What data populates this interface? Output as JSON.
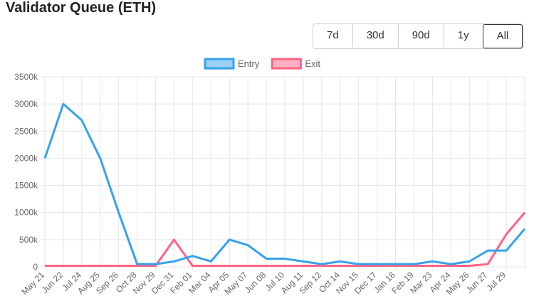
{
  "range_buttons": {
    "options": [
      "7d",
      "30d",
      "90d",
      "1y",
      "All"
    ],
    "selected": "All"
  },
  "chart_data": {
    "type": "line",
    "title": "Validator Queue (ETH)",
    "categories": [
      "May 21",
      "Jun 22",
      "Jul 24",
      "Aug 25",
      "Sep 26",
      "Oct 28",
      "Nov 29",
      "Dec 31",
      "Feb 01",
      "Mar 04",
      "Apr 05",
      "May 07",
      "Jun 08",
      "Jul 10",
      "Aug 11",
      "Sep 12",
      "Oct 14",
      "Nov 15",
      "Dec 17",
      "Jan 18",
      "Feb 19",
      "Mar 23",
      "Apr 24",
      "May 26",
      "Jun 27",
      "Jul 29",
      null
    ],
    "series": [
      {
        "name": "Entry",
        "color": "#36a2eb",
        "fill": "#9ad0f5",
        "values": [
          2000000,
          3000000,
          2700000,
          2000000,
          1000000,
          50000,
          50000,
          100000,
          200000,
          100000,
          500000,
          400000,
          150000,
          150000,
          100000,
          50000,
          100000,
          50000,
          50000,
          50000,
          50000,
          100000,
          50000,
          100000,
          300000,
          300000,
          700000
        ]
      },
      {
        "name": "Exit",
        "color": "#ff6384",
        "fill": "#ffb1c1",
        "values": [
          20000,
          20000,
          20000,
          20000,
          20000,
          20000,
          20000,
          500000,
          20000,
          20000,
          20000,
          20000,
          20000,
          20000,
          20000,
          20000,
          20000,
          20000,
          20000,
          20000,
          20000,
          20000,
          20000,
          20000,
          50000,
          600000,
          1000000
        ]
      }
    ],
    "ylim": [
      0,
      3500000
    ],
    "yticks": [
      0,
      {
        "value": 500000,
        "label": "500k"
      },
      {
        "value": 1000000,
        "label": "1000k"
      },
      {
        "value": 1500000,
        "label": "1500k"
      },
      {
        "value": 2000000,
        "label": "2000k"
      },
      {
        "value": 2500000,
        "label": "2500k"
      },
      {
        "value": 3000000,
        "label": "3000k"
      },
      {
        "value": 3500000,
        "label": "3500k"
      }
    ],
    "grid": true
  }
}
